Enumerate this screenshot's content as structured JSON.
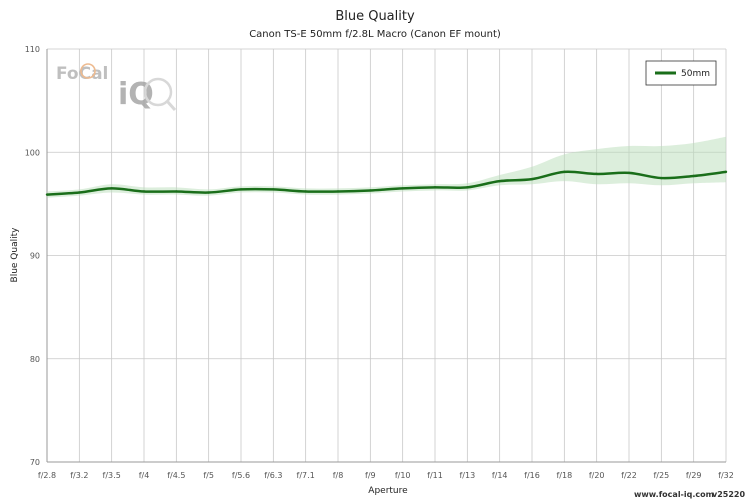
{
  "chart_data": {
    "type": "line",
    "title": "Blue Quality",
    "subtitle": "Canon TS-E 50mm f/2.8L Macro (Canon EF mount)",
    "xlabel": "Aperture",
    "ylabel": "Blue Quality",
    "ylim": [
      70,
      110
    ],
    "yticks": [
      70,
      80,
      90,
      100,
      110
    ],
    "categories": [
      "f/2.8",
      "f/3.2",
      "f/3.5",
      "f/4",
      "f/4.5",
      "f/5",
      "f/5.6",
      "f/6.3",
      "f/7.1",
      "f/8",
      "f/9",
      "f/10",
      "f/11",
      "f/13",
      "f/14",
      "f/16",
      "f/18",
      "f/20",
      "f/22",
      "f/25",
      "f/29",
      "f/32"
    ],
    "grid": true,
    "legend_position": "top-right",
    "series": [
      {
        "name": "50mm",
        "color": "#1a6e1a",
        "band_color": "#b9ddb9",
        "values": [
          95.9,
          96.1,
          96.5,
          96.2,
          96.2,
          96.1,
          96.4,
          96.4,
          96.2,
          96.2,
          96.3,
          96.5,
          96.6,
          96.6,
          97.2,
          97.4,
          98.1,
          97.9,
          98.0,
          97.5,
          97.7,
          98.1
        ],
        "upper": [
          96.2,
          96.4,
          96.9,
          96.6,
          96.6,
          96.4,
          96.7,
          96.7,
          96.5,
          96.5,
          96.6,
          96.8,
          96.9,
          97.0,
          97.8,
          98.6,
          99.8,
          100.3,
          100.6,
          100.6,
          100.9,
          101.5
        ],
        "lower": [
          95.6,
          95.8,
          96.1,
          95.9,
          95.9,
          95.8,
          96.1,
          96.1,
          95.9,
          95.9,
          96.0,
          96.2,
          96.3,
          96.3,
          96.8,
          96.9,
          97.2,
          96.9,
          97.0,
          96.8,
          97.0,
          97.1
        ]
      }
    ]
  },
  "logo": {
    "text_top": "FoCal",
    "text_bottom": "iQ"
  },
  "footer": {
    "website": "www.focal-iq.com",
    "version": "v25220"
  }
}
